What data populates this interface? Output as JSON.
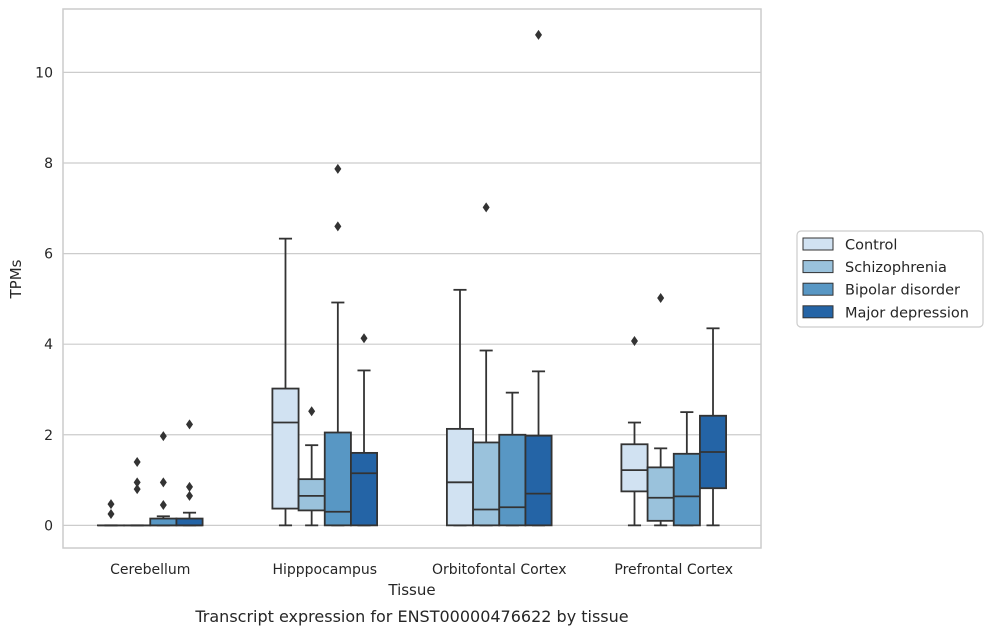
{
  "caption": "Transcript expression for ENST00000476622 by tissue",
  "chart_data": {
    "type": "box",
    "xlabel": "Tissue",
    "ylabel": "TPMs",
    "ylim": [
      -0.5,
      11.4
    ],
    "yticks": [
      0,
      2,
      4,
      6,
      8,
      10
    ],
    "grid": "horizontal",
    "legend_position": "right",
    "categories": [
      "Cerebellum",
      "Hipppocampus",
      "Orbitofontal Cortex",
      "Prefrontal Cortex"
    ],
    "series": [
      {
        "name": "Control",
        "color": "#d1e2f2",
        "boxes": [
          {
            "min": 0,
            "q1": 0,
            "median": 0,
            "q3": 0,
            "max": 0,
            "outliers": [
              0.25,
              0.47
            ]
          },
          {
            "min": 0,
            "q1": 0.37,
            "median": 2.27,
            "q3": 3.02,
            "max": 6.33,
            "outliers": []
          },
          {
            "min": 0,
            "q1": 0,
            "median": 0.95,
            "q3": 2.13,
            "max": 5.2,
            "outliers": []
          },
          {
            "min": 0,
            "q1": 0.75,
            "median": 1.22,
            "q3": 1.79,
            "max": 2.27,
            "outliers": [
              4.07
            ]
          }
        ]
      },
      {
        "name": "Schizophrenia",
        "color": "#9ac2dc",
        "boxes": [
          {
            "min": 0,
            "q1": 0,
            "median": 0,
            "q3": 0,
            "max": 0,
            "outliers": [
              0.8,
              0.95,
              1.4
            ]
          },
          {
            "min": 0,
            "q1": 0.33,
            "median": 0.65,
            "q3": 1.02,
            "max": 1.77,
            "outliers": [
              2.52
            ]
          },
          {
            "min": 0,
            "q1": 0,
            "median": 0.35,
            "q3": 1.83,
            "max": 3.86,
            "outliers": [
              7.02
            ]
          },
          {
            "min": 0,
            "q1": 0.1,
            "median": 0.61,
            "q3": 1.28,
            "max": 1.7,
            "outliers": [
              5.02
            ]
          }
        ]
      },
      {
        "name": "Bipolar disorder",
        "color": "#5897c4",
        "boxes": [
          {
            "min": 0,
            "q1": 0,
            "median": 0,
            "q3": 0.15,
            "max": 0.2,
            "outliers": [
              0.45,
              0.95,
              1.97
            ]
          },
          {
            "min": 0,
            "q1": 0,
            "median": 0.3,
            "q3": 2.05,
            "max": 4.92,
            "outliers": [
              6.6,
              7.87
            ]
          },
          {
            "min": 0,
            "q1": 0,
            "median": 0.4,
            "q3": 2.0,
            "max": 2.93,
            "outliers": []
          },
          {
            "min": 0,
            "q1": 0,
            "median": 0.64,
            "q3": 1.58,
            "max": 2.5,
            "outliers": []
          }
        ]
      },
      {
        "name": "Major depression",
        "color": "#2464a6",
        "boxes": [
          {
            "min": 0,
            "q1": 0,
            "median": 0,
            "q3": 0.15,
            "max": 0.28,
            "outliers": [
              0.65,
              0.85,
              2.23
            ]
          },
          {
            "min": 0,
            "q1": 0,
            "median": 1.15,
            "q3": 1.6,
            "max": 3.42,
            "outliers": [
              4.13
            ]
          },
          {
            "min": 0,
            "q1": 0,
            "median": 0.7,
            "q3": 1.98,
            "max": 3.4,
            "outliers": [
              10.83
            ]
          },
          {
            "min": 0,
            "q1": 0.82,
            "median": 1.62,
            "q3": 2.42,
            "max": 4.35,
            "outliers": []
          }
        ]
      }
    ]
  }
}
